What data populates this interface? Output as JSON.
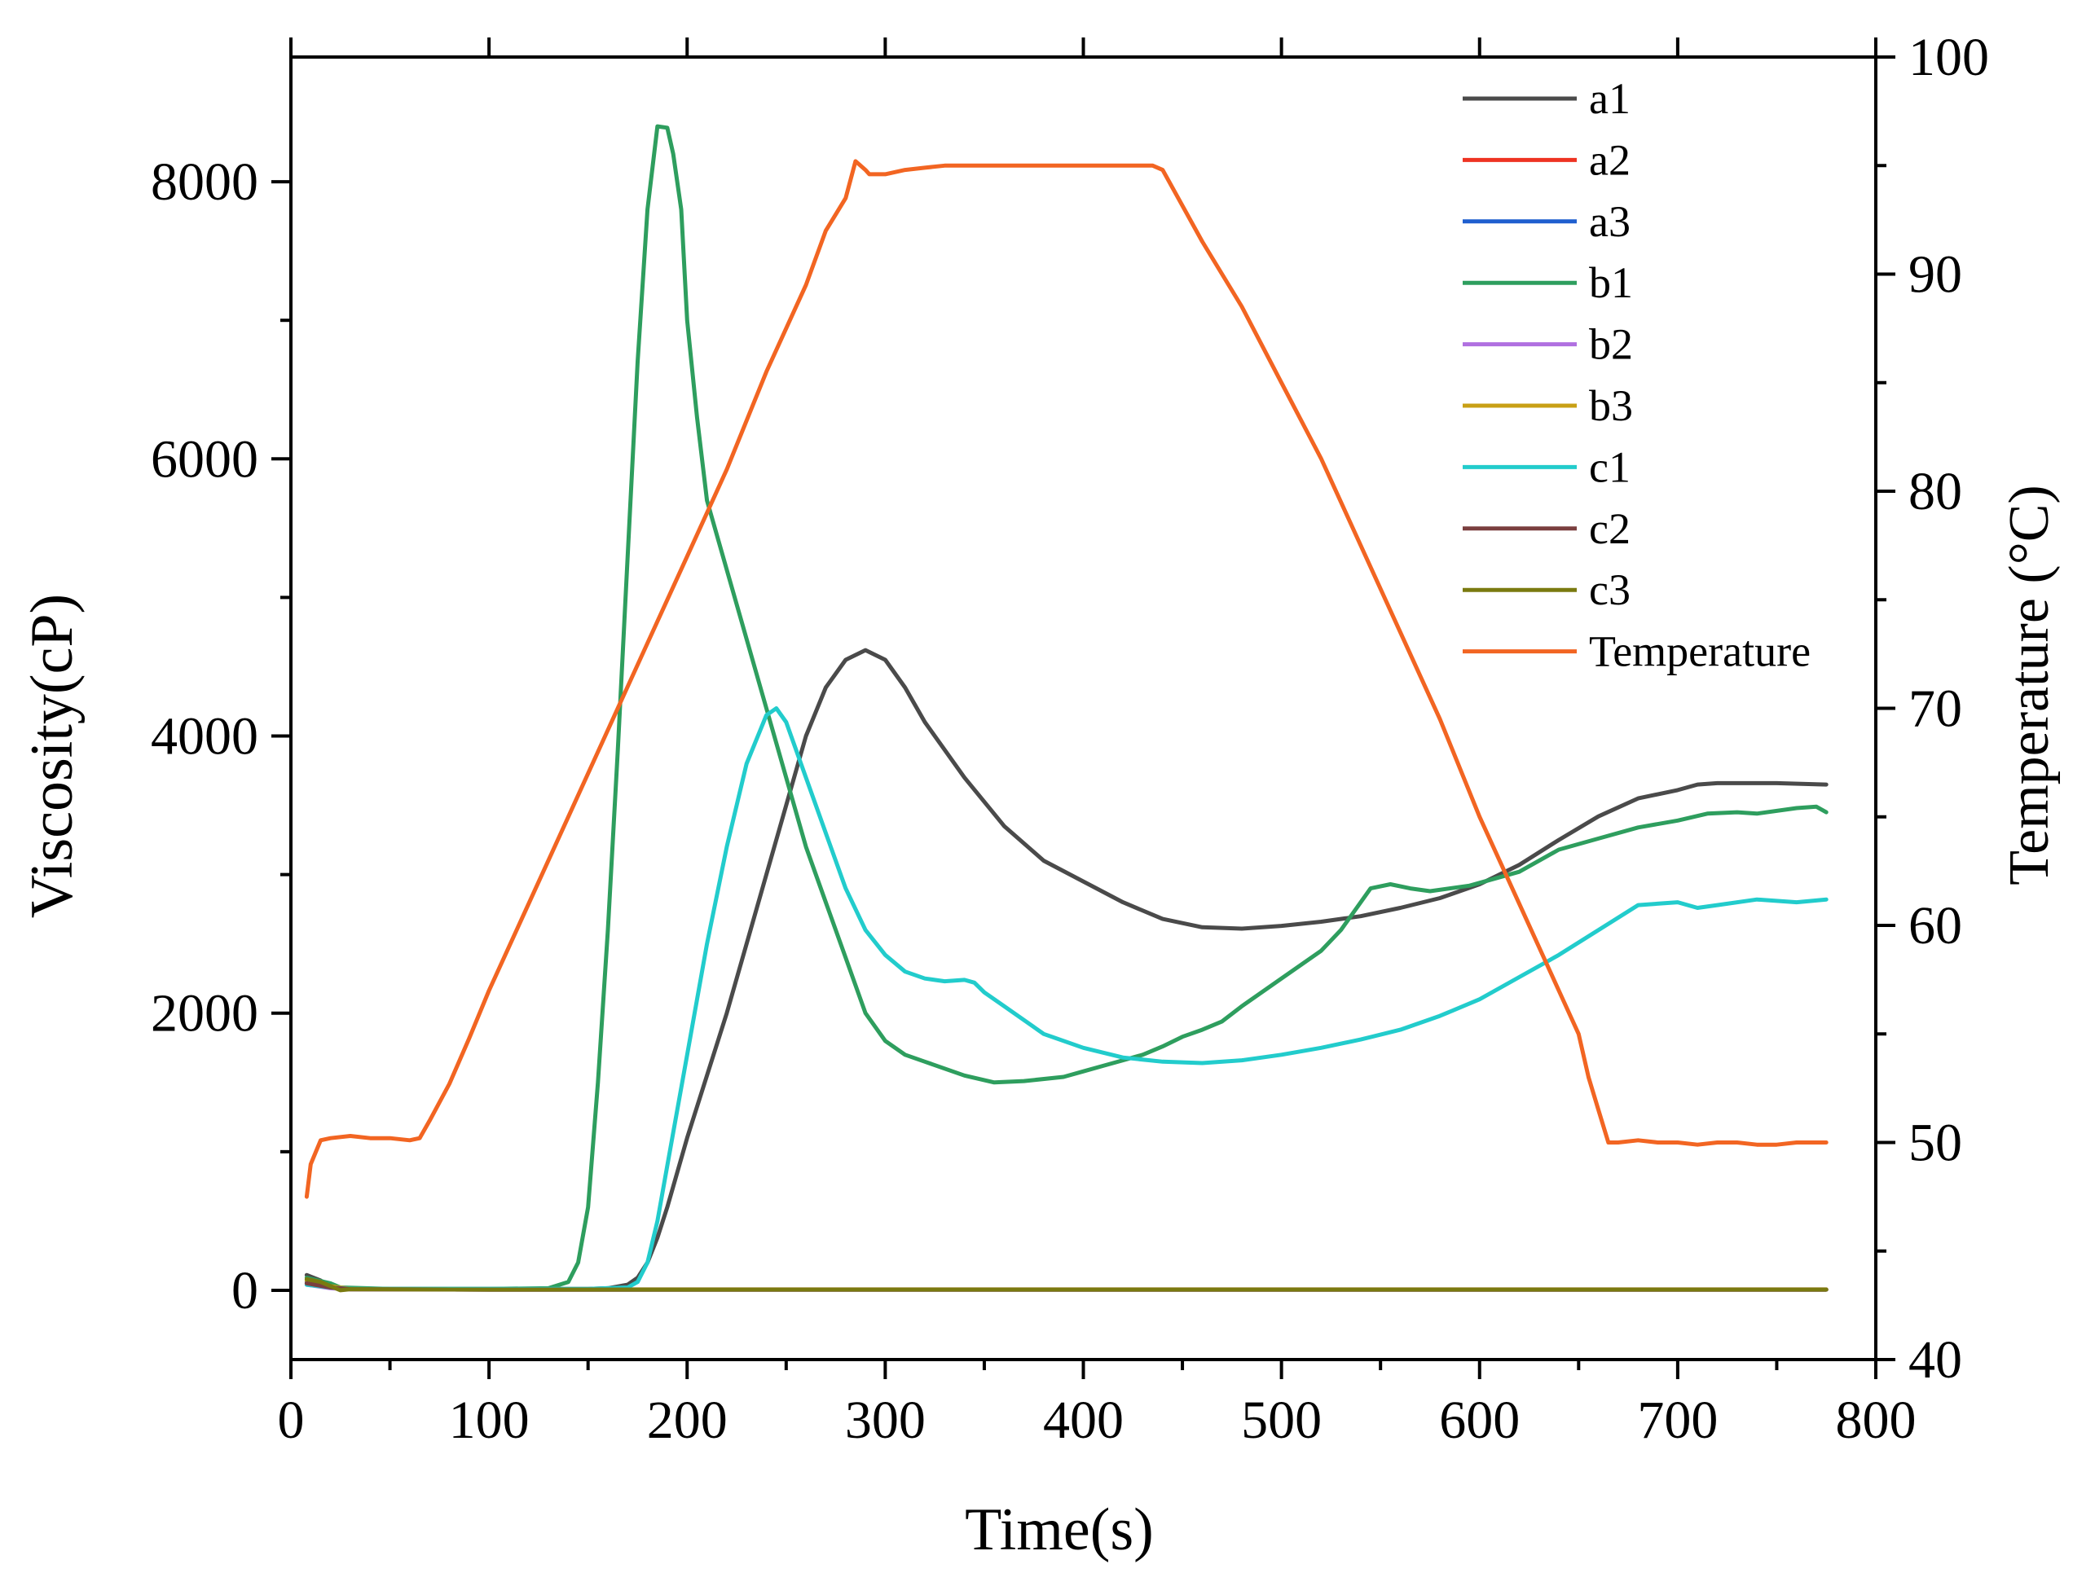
{
  "chart_data": {
    "type": "line",
    "xlabel": "Time(s)",
    "ylabel": "Viscosity(cP)",
    "y2label": "Temperature (°C)",
    "xlim": [
      0,
      800
    ],
    "ylim": [
      -500,
      8900
    ],
    "y2lim": [
      40,
      100
    ],
    "xticks": [
      0,
      100,
      200,
      300,
      400,
      500,
      600,
      700,
      800
    ],
    "yticks": [
      0,
      2000,
      4000,
      6000,
      8000
    ],
    "y2ticks": [
      40,
      50,
      60,
      70,
      80,
      90,
      100
    ],
    "xtick_labels": [
      "0",
      "100",
      "200",
      "300",
      "400",
      "500",
      "600",
      "700",
      "800"
    ],
    "ytick_labels": [
      "0",
      "2000",
      "4000",
      "6000",
      "8000"
    ],
    "y2tick_labels": [
      "40",
      "50",
      "60",
      "70",
      "80",
      "90",
      "100"
    ],
    "grid": false,
    "legend_position": "top-right",
    "series": [
      {
        "name": "a1",
        "axis": "left",
        "color": "#4a4a4a",
        "x": [
          8,
          15,
          20,
          25,
          50,
          100,
          150,
          160,
          170,
          175,
          180,
          185,
          190,
          200,
          210,
          220,
          230,
          240,
          250,
          260,
          270,
          280,
          290,
          300,
          310,
          320,
          340,
          360,
          380,
          400,
          420,
          440,
          460,
          480,
          500,
          520,
          540,
          560,
          580,
          600,
          620,
          640,
          660,
          680,
          700,
          710,
          720,
          735,
          750,
          775
        ],
        "y": [
          110,
          70,
          30,
          15,
          10,
          10,
          10,
          15,
          40,
          90,
          200,
          380,
          600,
          1100,
          1550,
          2000,
          2500,
          3000,
          3500,
          4000,
          4350,
          4550,
          4620,
          4550,
          4350,
          4100,
          3700,
          3350,
          3100,
          2950,
          2800,
          2680,
          2620,
          2610,
          2630,
          2660,
          2700,
          2760,
          2830,
          2930,
          3070,
          3250,
          3420,
          3550,
          3610,
          3650,
          3660,
          3660,
          3660,
          3650
        ]
      },
      {
        "name": "a2",
        "axis": "left",
        "color": "#ee3322",
        "x": [
          8,
          20,
          30,
          100,
          200,
          300,
          400,
          500,
          600,
          700,
          775
        ],
        "y": [
          50,
          20,
          8,
          5,
          5,
          5,
          5,
          5,
          5,
          5,
          5
        ]
      },
      {
        "name": "a3",
        "axis": "left",
        "color": "#1f5fcf",
        "x": [
          8,
          20,
          30,
          100,
          200,
          300,
          400,
          500,
          600,
          700,
          775
        ],
        "y": [
          60,
          25,
          8,
          5,
          5,
          5,
          5,
          5,
          5,
          5,
          5
        ]
      },
      {
        "name": "b1",
        "axis": "left",
        "color": "#2e9e5e",
        "x": [
          8,
          20,
          25,
          50,
          100,
          130,
          140,
          145,
          150,
          155,
          160,
          165,
          170,
          175,
          180,
          185,
          190,
          193,
          197,
          200,
          205,
          210,
          220,
          230,
          240,
          250,
          260,
          270,
          280,
          290,
          295,
          300,
          310,
          320,
          340,
          355,
          370,
          390,
          400,
          410,
          420,
          430,
          440,
          450,
          460,
          470,
          480,
          500,
          520,
          530,
          540,
          545,
          555,
          565,
          575,
          595,
          620,
          640,
          660,
          680,
          700,
          715,
          730,
          740,
          760,
          770,
          775
        ],
        "y": [
          90,
          50,
          20,
          10,
          10,
          15,
          60,
          200,
          600,
          1500,
          2600,
          3900,
          5300,
          6700,
          7800,
          8400,
          8390,
          8200,
          7800,
          7000,
          6300,
          5700,
          5200,
          4700,
          4200,
          3700,
          3200,
          2800,
          2400,
          2000,
          1900,
          1800,
          1700,
          1650,
          1550,
          1500,
          1510,
          1540,
          1580,
          1620,
          1660,
          1700,
          1760,
          1830,
          1880,
          1940,
          2050,
          2250,
          2450,
          2600,
          2800,
          2900,
          2930,
          2900,
          2880,
          2920,
          3020,
          3180,
          3260,
          3340,
          3390,
          3440,
          3450,
          3440,
          3480,
          3490,
          3450
        ]
      },
      {
        "name": "b2",
        "axis": "left",
        "color": "#b070e0",
        "x": [
          8,
          20,
          30,
          100,
          200,
          300,
          400,
          500,
          600,
          700,
          775
        ],
        "y": [
          40,
          15,
          6,
          5,
          5,
          5,
          5,
          5,
          5,
          5,
          5
        ]
      },
      {
        "name": "b3",
        "axis": "left",
        "color": "#c8a015",
        "x": [
          8,
          20,
          30,
          100,
          200,
          300,
          400,
          500,
          600,
          700,
          775
        ],
        "y": [
          70,
          30,
          10,
          6,
          6,
          6,
          6,
          6,
          6,
          6,
          6
        ]
      },
      {
        "name": "c1",
        "axis": "left",
        "color": "#22cccc",
        "x": [
          8,
          20,
          30,
          100,
          150,
          170,
          175,
          180,
          185,
          190,
          200,
          210,
          220,
          230,
          240,
          245,
          250,
          260,
          270,
          280,
          290,
          300,
          310,
          320,
          330,
          340,
          345,
          350,
          360,
          380,
          400,
          420,
          440,
          460,
          480,
          500,
          520,
          540,
          560,
          580,
          600,
          620,
          640,
          660,
          680,
          700,
          710,
          720,
          740,
          760,
          775
        ],
        "y": [
          40,
          20,
          10,
          10,
          10,
          20,
          60,
          200,
          500,
          900,
          1700,
          2500,
          3200,
          3800,
          4150,
          4200,
          4100,
          3700,
          3300,
          2900,
          2600,
          2420,
          2300,
          2250,
          2230,
          2240,
          2220,
          2150,
          2050,
          1850,
          1750,
          1680,
          1650,
          1640,
          1660,
          1700,
          1750,
          1810,
          1880,
          1980,
          2100,
          2260,
          2420,
          2600,
          2780,
          2800,
          2760,
          2780,
          2820,
          2800,
          2820
        ]
      },
      {
        "name": "c2",
        "axis": "left",
        "color": "#7a3f3f",
        "x": [
          8,
          20,
          30,
          100,
          200,
          300,
          400,
          500,
          600,
          700,
          775
        ],
        "y": [
          50,
          20,
          8,
          5,
          5,
          5,
          5,
          5,
          5,
          5,
          5
        ]
      },
      {
        "name": "c3",
        "axis": "left",
        "color": "#7a7a10",
        "x": [
          8,
          15,
          20,
          25,
          30,
          100,
          200,
          300,
          400,
          500,
          600,
          700,
          775
        ],
        "y": [
          80,
          60,
          30,
          0,
          8,
          5,
          5,
          5,
          5,
          5,
          5,
          5,
          5
        ]
      },
      {
        "name": "Temperature",
        "axis": "right",
        "color": "#f26522",
        "x": [
          8,
          10,
          15,
          20,
          30,
          40,
          50,
          60,
          65,
          70,
          80,
          90,
          100,
          120,
          140,
          160,
          180,
          200,
          220,
          240,
          260,
          270,
          280,
          285,
          290,
          292,
          300,
          310,
          320,
          330,
          340,
          350,
          360,
          380,
          400,
          420,
          430,
          435,
          440,
          460,
          480,
          500,
          520,
          540,
          560,
          580,
          600,
          620,
          640,
          650,
          655,
          660,
          665,
          670,
          680,
          690,
          700,
          710,
          720,
          730,
          740,
          750,
          760,
          775
        ],
        "y": [
          47.5,
          49.0,
          50.1,
          50.2,
          50.3,
          50.2,
          50.2,
          50.1,
          50.2,
          51,
          52.7,
          54.8,
          57,
          61,
          65,
          69,
          73,
          77,
          81,
          85.5,
          89.5,
          92,
          93.5,
          95.2,
          94.8,
          94.6,
          94.6,
          94.8,
          94.9,
          95.0,
          95.0,
          95.0,
          95.0,
          95.0,
          95.0,
          95.0,
          95.0,
          95.0,
          94.8,
          91.5,
          88.5,
          85,
          81.5,
          77.5,
          73.5,
          69.5,
          65,
          61,
          57,
          55,
          53,
          51.5,
          50,
          50,
          50.1,
          50,
          50,
          49.9,
          50,
          50,
          49.9,
          49.9,
          50,
          50
        ]
      }
    ]
  }
}
